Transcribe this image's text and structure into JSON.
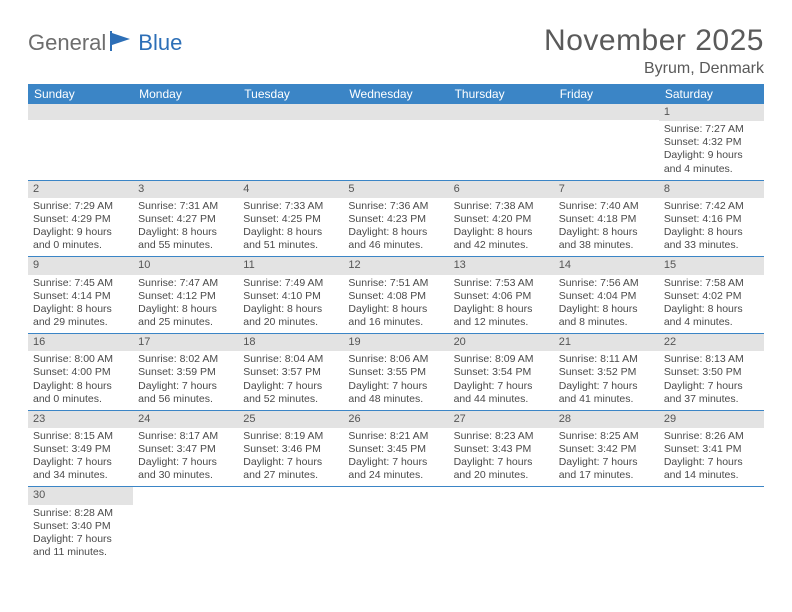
{
  "logo": {
    "part1": "General",
    "part2": "Blue"
  },
  "title": "November 2025",
  "location": "Byrum, Denmark",
  "weekday_headers": [
    "Sunday",
    "Monday",
    "Tuesday",
    "Wednesday",
    "Thursday",
    "Friday",
    "Saturday"
  ],
  "colors": {
    "header_bg": "#3b85c6",
    "header_text": "#ffffff",
    "daynum_bg": "#e3e3e3",
    "row_divider": "#3b85c6",
    "logo_gray": "#6d6d6d",
    "logo_blue": "#2d6fb7",
    "text": "#4a4a4a"
  },
  "weeks": [
    [
      null,
      null,
      null,
      null,
      null,
      null,
      {
        "n": "1",
        "sr": "Sunrise: 7:27 AM",
        "ss": "Sunset: 4:32 PM",
        "d1": "Daylight: 9 hours",
        "d2": "and 4 minutes."
      }
    ],
    [
      {
        "n": "2",
        "sr": "Sunrise: 7:29 AM",
        "ss": "Sunset: 4:29 PM",
        "d1": "Daylight: 9 hours",
        "d2": "and 0 minutes."
      },
      {
        "n": "3",
        "sr": "Sunrise: 7:31 AM",
        "ss": "Sunset: 4:27 PM",
        "d1": "Daylight: 8 hours",
        "d2": "and 55 minutes."
      },
      {
        "n": "4",
        "sr": "Sunrise: 7:33 AM",
        "ss": "Sunset: 4:25 PM",
        "d1": "Daylight: 8 hours",
        "d2": "and 51 minutes."
      },
      {
        "n": "5",
        "sr": "Sunrise: 7:36 AM",
        "ss": "Sunset: 4:23 PM",
        "d1": "Daylight: 8 hours",
        "d2": "and 46 minutes."
      },
      {
        "n": "6",
        "sr": "Sunrise: 7:38 AM",
        "ss": "Sunset: 4:20 PM",
        "d1": "Daylight: 8 hours",
        "d2": "and 42 minutes."
      },
      {
        "n": "7",
        "sr": "Sunrise: 7:40 AM",
        "ss": "Sunset: 4:18 PM",
        "d1": "Daylight: 8 hours",
        "d2": "and 38 minutes."
      },
      {
        "n": "8",
        "sr": "Sunrise: 7:42 AM",
        "ss": "Sunset: 4:16 PM",
        "d1": "Daylight: 8 hours",
        "d2": "and 33 minutes."
      }
    ],
    [
      {
        "n": "9",
        "sr": "Sunrise: 7:45 AM",
        "ss": "Sunset: 4:14 PM",
        "d1": "Daylight: 8 hours",
        "d2": "and 29 minutes."
      },
      {
        "n": "10",
        "sr": "Sunrise: 7:47 AM",
        "ss": "Sunset: 4:12 PM",
        "d1": "Daylight: 8 hours",
        "d2": "and 25 minutes."
      },
      {
        "n": "11",
        "sr": "Sunrise: 7:49 AM",
        "ss": "Sunset: 4:10 PM",
        "d1": "Daylight: 8 hours",
        "d2": "and 20 minutes."
      },
      {
        "n": "12",
        "sr": "Sunrise: 7:51 AM",
        "ss": "Sunset: 4:08 PM",
        "d1": "Daylight: 8 hours",
        "d2": "and 16 minutes."
      },
      {
        "n": "13",
        "sr": "Sunrise: 7:53 AM",
        "ss": "Sunset: 4:06 PM",
        "d1": "Daylight: 8 hours",
        "d2": "and 12 minutes."
      },
      {
        "n": "14",
        "sr": "Sunrise: 7:56 AM",
        "ss": "Sunset: 4:04 PM",
        "d1": "Daylight: 8 hours",
        "d2": "and 8 minutes."
      },
      {
        "n": "15",
        "sr": "Sunrise: 7:58 AM",
        "ss": "Sunset: 4:02 PM",
        "d1": "Daylight: 8 hours",
        "d2": "and 4 minutes."
      }
    ],
    [
      {
        "n": "16",
        "sr": "Sunrise: 8:00 AM",
        "ss": "Sunset: 4:00 PM",
        "d1": "Daylight: 8 hours",
        "d2": "and 0 minutes."
      },
      {
        "n": "17",
        "sr": "Sunrise: 8:02 AM",
        "ss": "Sunset: 3:59 PM",
        "d1": "Daylight: 7 hours",
        "d2": "and 56 minutes."
      },
      {
        "n": "18",
        "sr": "Sunrise: 8:04 AM",
        "ss": "Sunset: 3:57 PM",
        "d1": "Daylight: 7 hours",
        "d2": "and 52 minutes."
      },
      {
        "n": "19",
        "sr": "Sunrise: 8:06 AM",
        "ss": "Sunset: 3:55 PM",
        "d1": "Daylight: 7 hours",
        "d2": "and 48 minutes."
      },
      {
        "n": "20",
        "sr": "Sunrise: 8:09 AM",
        "ss": "Sunset: 3:54 PM",
        "d1": "Daylight: 7 hours",
        "d2": "and 44 minutes."
      },
      {
        "n": "21",
        "sr": "Sunrise: 8:11 AM",
        "ss": "Sunset: 3:52 PM",
        "d1": "Daylight: 7 hours",
        "d2": "and 41 minutes."
      },
      {
        "n": "22",
        "sr": "Sunrise: 8:13 AM",
        "ss": "Sunset: 3:50 PM",
        "d1": "Daylight: 7 hours",
        "d2": "and 37 minutes."
      }
    ],
    [
      {
        "n": "23",
        "sr": "Sunrise: 8:15 AM",
        "ss": "Sunset: 3:49 PM",
        "d1": "Daylight: 7 hours",
        "d2": "and 34 minutes."
      },
      {
        "n": "24",
        "sr": "Sunrise: 8:17 AM",
        "ss": "Sunset: 3:47 PM",
        "d1": "Daylight: 7 hours",
        "d2": "and 30 minutes."
      },
      {
        "n": "25",
        "sr": "Sunrise: 8:19 AM",
        "ss": "Sunset: 3:46 PM",
        "d1": "Daylight: 7 hours",
        "d2": "and 27 minutes."
      },
      {
        "n": "26",
        "sr": "Sunrise: 8:21 AM",
        "ss": "Sunset: 3:45 PM",
        "d1": "Daylight: 7 hours",
        "d2": "and 24 minutes."
      },
      {
        "n": "27",
        "sr": "Sunrise: 8:23 AM",
        "ss": "Sunset: 3:43 PM",
        "d1": "Daylight: 7 hours",
        "d2": "and 20 minutes."
      },
      {
        "n": "28",
        "sr": "Sunrise: 8:25 AM",
        "ss": "Sunset: 3:42 PM",
        "d1": "Daylight: 7 hours",
        "d2": "and 17 minutes."
      },
      {
        "n": "29",
        "sr": "Sunrise: 8:26 AM",
        "ss": "Sunset: 3:41 PM",
        "d1": "Daylight: 7 hours",
        "d2": "and 14 minutes."
      }
    ],
    [
      {
        "n": "30",
        "sr": "Sunrise: 8:28 AM",
        "ss": "Sunset: 3:40 PM",
        "d1": "Daylight: 7 hours",
        "d2": "and 11 minutes."
      },
      null,
      null,
      null,
      null,
      null,
      null
    ]
  ]
}
